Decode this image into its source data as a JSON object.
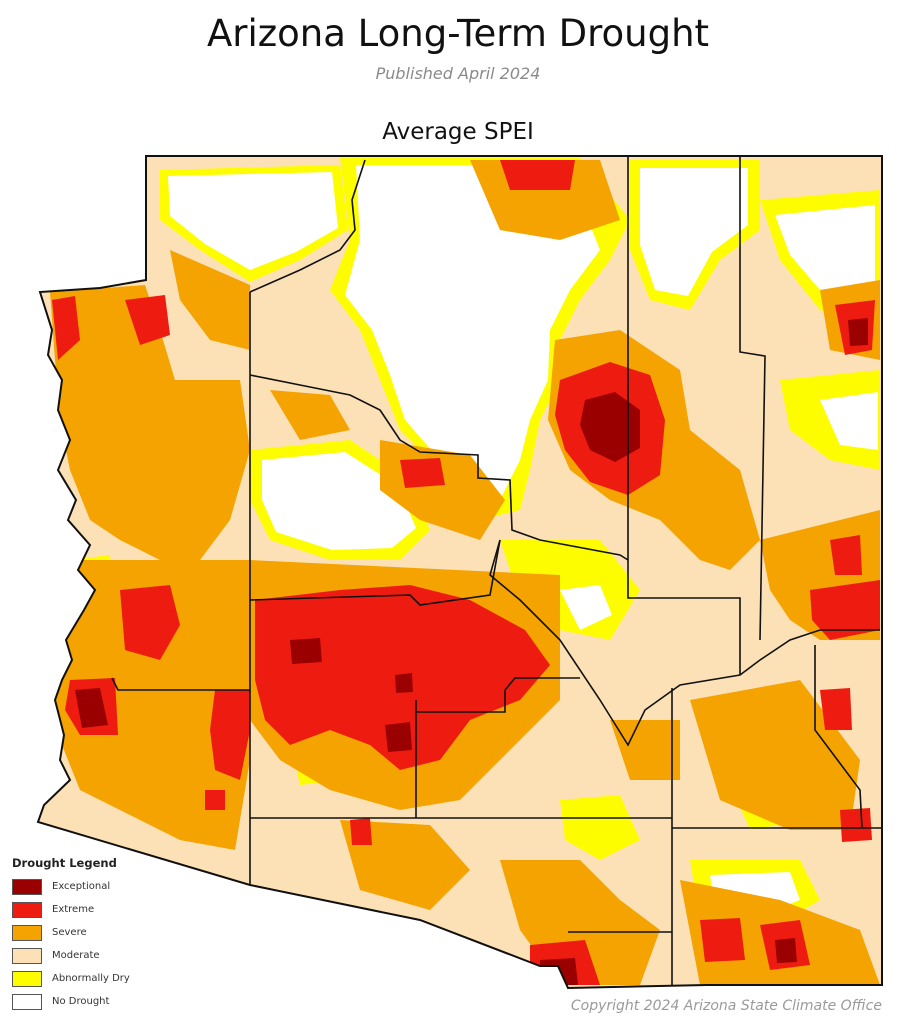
{
  "header": {
    "title": "Arizona Long-Term Drought",
    "subtitle": "Published April 2024"
  },
  "map": {
    "title": "Average SPEI",
    "outline_color": "#111111"
  },
  "legend": {
    "title": "Drought Legend",
    "items": [
      {
        "label": "Exceptional",
        "color": "#9b0000"
      },
      {
        "label": "Extreme",
        "color": "#ee1c10"
      },
      {
        "label": "Severe",
        "color": "#f5a300"
      },
      {
        "label": "Moderate",
        "color": "#fde1b6"
      },
      {
        "label": "Abnormally Dry",
        "color": "#fdfd00"
      },
      {
        "label": "No Drought",
        "color": "#ffffff"
      }
    ]
  },
  "footer": {
    "copyright": "Copyright 2024 Arizona State Climate Office"
  }
}
